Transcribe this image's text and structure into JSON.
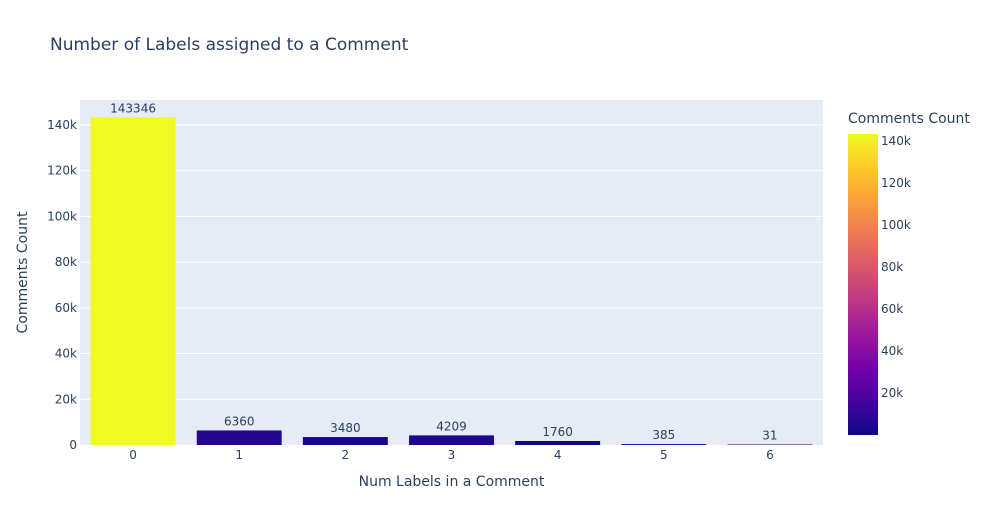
{
  "chart_data": {
    "type": "bar",
    "title": "Number of Labels assigned to a Comment",
    "xlabel": "Num Labels in a Comment",
    "ylabel": "Comments Count",
    "categories": [
      "0",
      "1",
      "2",
      "3",
      "4",
      "5",
      "6"
    ],
    "values": [
      143346,
      6360,
      3480,
      4209,
      1760,
      385,
      31
    ],
    "data_labels": [
      "143346",
      "6360",
      "3480",
      "4209",
      "1760",
      "385",
      "31"
    ],
    "ylim": [
      0,
      150894
    ],
    "yticks": [
      0,
      20000,
      40000,
      60000,
      80000,
      100000,
      120000,
      140000
    ],
    "ytick_labels": [
      "0",
      "20k",
      "40k",
      "60k",
      "80k",
      "100k",
      "120k",
      "140k"
    ],
    "grid": true,
    "colorscale": "plasma",
    "colorbar": {
      "title": "Comments Count",
      "min": 31,
      "max": 143346,
      "ticks": [
        20000,
        40000,
        60000,
        80000,
        100000,
        120000,
        140000
      ],
      "tick_labels": [
        "20k",
        "40k",
        "60k",
        "80k",
        "100k",
        "120k",
        "140k"
      ]
    },
    "colors": {
      "plot_bg": "#E5ECF6",
      "grid": "#ffffff",
      "text": "#2a3f5f",
      "muted_text": "#506784",
      "plasma": [
        "#0d0887",
        "#46039f",
        "#7201a8",
        "#9c179e",
        "#bd3786",
        "#d8576b",
        "#ed7953",
        "#fb9f3a",
        "#fdca26",
        "#f0f921"
      ]
    }
  }
}
